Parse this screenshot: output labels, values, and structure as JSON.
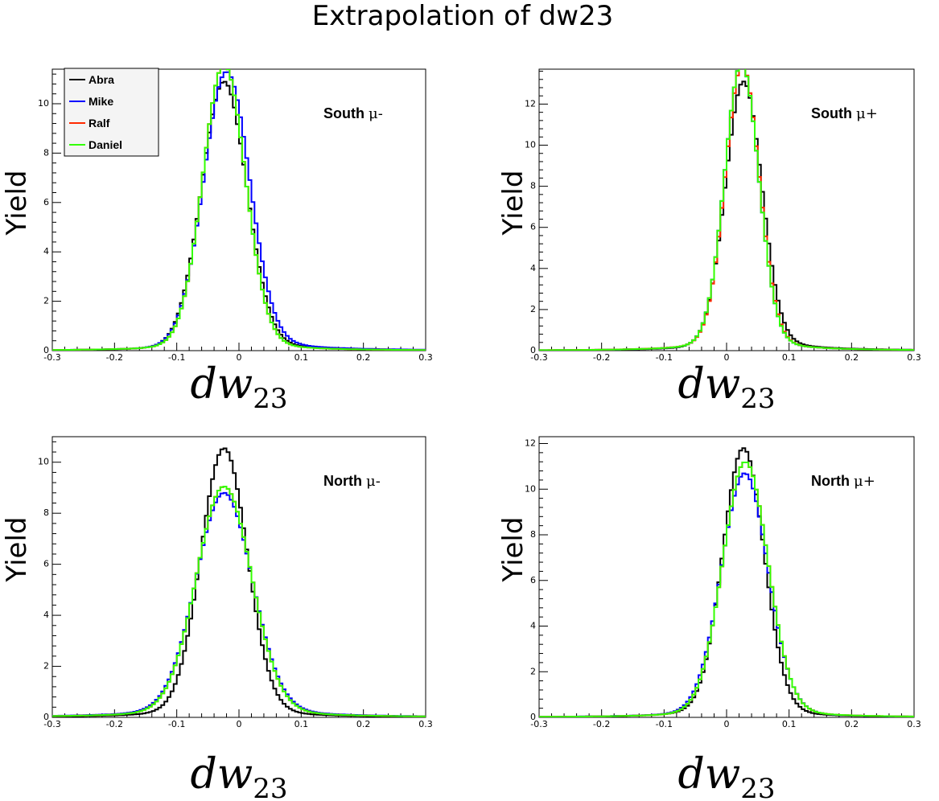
{
  "title": "Extrapolation of dw23",
  "colors": {
    "Abra": "#000000",
    "Mike": "#0000ff",
    "Ralf": "#ff2a00",
    "Daniel": "#33ff00"
  },
  "chart_data": [
    {
      "type": "line",
      "panel": "South μ-",
      "label_word": "South",
      "label_sym": "μ-",
      "xlabel": "dw",
      "xlabel_sub": "23",
      "ylabel": "Yield",
      "xlim": [
        -0.3,
        0.3
      ],
      "ylim": [
        0,
        11.4
      ],
      "xticks": [
        "-0.3",
        "-0.2",
        "-0.1",
        "0",
        "0.1",
        "0.2",
        "0.3"
      ],
      "yticks": [
        "0",
        "2",
        "4",
        "6",
        "8",
        "10"
      ],
      "legend": [
        "Abra",
        "Mike",
        "Ralf",
        "Daniel"
      ],
      "series": [
        {
          "name": "Abra",
          "center": -0.024,
          "peak": 10.9,
          "sigma": 0.036,
          "tailL": 0.025,
          "tailR": 0.032
        },
        {
          "name": "Mike",
          "center": -0.02,
          "peak": 11.3,
          "sigma": 0.037,
          "tailL": 0.026,
          "tailR": 0.036
        },
        {
          "name": "Ralf",
          "center": -0.024,
          "peak": 11.6,
          "sigma": 0.034,
          "tailL": 0.025,
          "tailR": 0.028
        },
        {
          "name": "Daniel",
          "center": -0.024,
          "peak": 11.6,
          "sigma": 0.034,
          "tailL": 0.025,
          "tailR": 0.028
        }
      ]
    },
    {
      "type": "line",
      "panel": "South μ+",
      "label_word": "South",
      "label_sym": "μ+",
      "xlabel": "dw",
      "xlabel_sub": "23",
      "ylabel": "Yield",
      "xlim": [
        -0.3,
        0.3
      ],
      "ylim": [
        0,
        13.7
      ],
      "xticks": [
        "-0.3",
        "-0.2",
        "-0.1",
        "0",
        "0.1",
        "0.2",
        "0.3"
      ],
      "yticks": [
        "0",
        "2",
        "4",
        "6",
        "8",
        "10",
        "12"
      ],
      "series": [
        {
          "name": "Abra",
          "center": 0.027,
          "peak": 13.1,
          "sigma": 0.029,
          "tailL": 0.023,
          "tailR": 0.03
        },
        {
          "name": "Mike",
          "center": 0.024,
          "peak": 14.0,
          "sigma": 0.027,
          "tailL": 0.024,
          "tailR": 0.026
        },
        {
          "name": "Ralf",
          "center": 0.025,
          "peak": 13.9,
          "sigma": 0.027,
          "tailL": 0.025,
          "tailR": 0.026
        },
        {
          "name": "Daniel",
          "center": 0.024,
          "peak": 14.0,
          "sigma": 0.027,
          "tailL": 0.024,
          "tailR": 0.026
        }
      ]
    },
    {
      "type": "line",
      "panel": "North μ-",
      "label_word": "North",
      "label_sym": "μ-",
      "xlabel": "dw",
      "xlabel_sub": "23",
      "ylabel": "Yield",
      "xlim": [
        -0.3,
        0.3
      ],
      "ylim": [
        0,
        11.0
      ],
      "xticks": [
        "-0.3",
        "-0.2",
        "-0.1",
        "0",
        "0.1",
        "0.2",
        "0.3"
      ],
      "yticks": [
        "0",
        "2",
        "4",
        "6",
        "8",
        "10"
      ],
      "series": [
        {
          "name": "Abra",
          "center": -0.024,
          "peak": 10.55,
          "sigma": 0.037,
          "tailL": 0.03,
          "tailR": 0.03
        },
        {
          "name": "Mike",
          "center": -0.024,
          "peak": 8.8,
          "sigma": 0.045,
          "tailL": 0.045,
          "tailR": 0.045
        },
        {
          "name": "Ralf",
          "center": -0.024,
          "peak": 9.05,
          "sigma": 0.044,
          "tailL": 0.04,
          "tailR": 0.04
        },
        {
          "name": "Daniel",
          "center": -0.024,
          "peak": 9.05,
          "sigma": 0.044,
          "tailL": 0.04,
          "tailR": 0.04
        }
      ]
    },
    {
      "type": "line",
      "panel": "North μ+",
      "label_word": "North",
      "label_sym": "μ+",
      "xlabel": "dw",
      "xlabel_sub": "23",
      "ylabel": "Yield",
      "xlim": [
        -0.3,
        0.3
      ],
      "ylim": [
        0,
        12.3
      ],
      "xticks": [
        "-0.3",
        "-0.2",
        "-0.1",
        "0",
        "0.1",
        "0.2",
        "0.3"
      ],
      "yticks": [
        "0",
        "2",
        "4",
        "6",
        "8",
        "10",
        "12"
      ],
      "series": [
        {
          "name": "Abra",
          "center": 0.027,
          "peak": 11.8,
          "sigma": 0.033,
          "tailL": 0.028,
          "tailR": 0.026
        },
        {
          "name": "Mike",
          "center": 0.029,
          "peak": 10.7,
          "sigma": 0.037,
          "tailL": 0.03,
          "tailR": 0.03
        },
        {
          "name": "Ralf",
          "center": 0.03,
          "peak": 11.2,
          "sigma": 0.036,
          "tailL": 0.028,
          "tailR": 0.03
        },
        {
          "name": "Daniel",
          "center": 0.03,
          "peak": 11.2,
          "sigma": 0.036,
          "tailL": 0.028,
          "tailR": 0.03
        }
      ]
    }
  ]
}
